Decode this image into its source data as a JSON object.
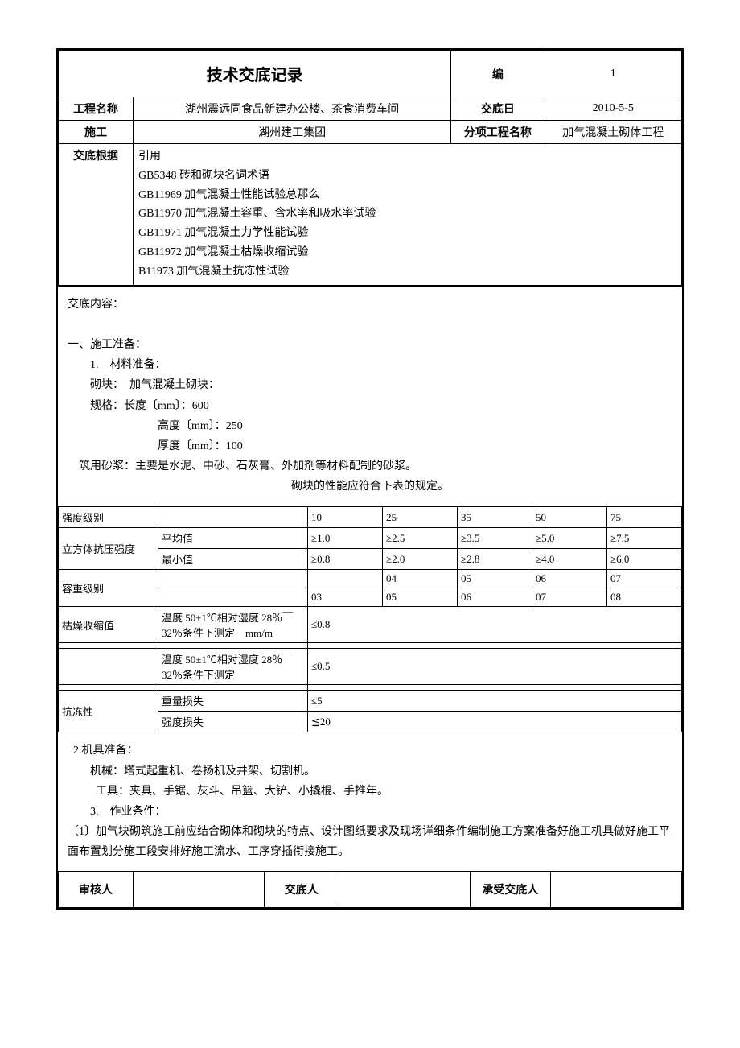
{
  "header": {
    "title": "技术交底记录",
    "num_label": "编",
    "num_value": "1",
    "project_label": "工程名称",
    "project_name": "湖州震远同食品新建办公楼、茶食消费车间",
    "date_label": "交底日",
    "date_value": "2010-5-5",
    "construct_label": "施工",
    "construct_value": "湖州建工集团",
    "subitem_label": "分项工程名称",
    "subitem_value": "加气混凝土砌体工程"
  },
  "basis": {
    "label": "交底根据",
    "lines": [
      "引用",
      "GB5348 砖和砌块名词术语",
      "GB11969 加气混凝土性能试验总那么",
      "GB11970 加气混凝土容重、含水率和吸水率试验",
      "GB11971 加气混凝土力学性能试验",
      "GB11972 加气混凝土枯燥收缩试验",
      "B11973 加气混凝土抗冻性试验"
    ]
  },
  "content": {
    "heading": "交底内容：",
    "sec1_title": "一、施工准备：",
    "sec1_1": "1.　材料准备：",
    "block_line": "砌块：　加气混凝土砌块：",
    "spec_line1": "规格：长度〔mm〕：600",
    "spec_line2": "高度〔mm〕：250",
    "spec_line3": "厚度〔mm〕：100",
    "mortar_line": "筑用砂浆：主要是水泥、中砂、石灰膏、外加剂等材料配制的砂浆。",
    "table_caption": "砌块的性能应符合下表的规定。"
  },
  "spec_table": {
    "rows": [
      {
        "c0": "强度级别",
        "c1": "",
        "c2": "10",
        "c3": "25",
        "c4": "35",
        "c5": "50",
        "c6": "75"
      },
      {
        "c0": "立方体抗压强度",
        "rowspan0": 2,
        "c1": "平均值",
        "c2": "≥1.0",
        "c3": "≥2.5",
        "c4": "≥3.5",
        "c5": "≥5.0",
        "c6": "≥7.5"
      },
      {
        "c1": "最小值",
        "c2": "≥0.8",
        "c3": "≥2.0",
        "c4": "≥2.8",
        "c5": "≥4.0",
        "c6": "≥6.0"
      },
      {
        "c0": "容重级别",
        "rowspan0": 2,
        "c1": "",
        "c2": "",
        "c3": "04",
        "c4": "05",
        "c5": "06",
        "c6": "07"
      },
      {
        "c1": "",
        "c2": "03",
        "c3": "05",
        "c4": "06",
        "c5": "07",
        "c6": "08"
      },
      {
        "c0": "枯燥收缩值",
        "c1": "温度 50±1℃相对湿度 28％￣32％条件下测定　mm/m",
        "c2": "≤0.8",
        "colspan2": 5
      },
      {
        "c0": "",
        "c1": "",
        "c2": "",
        "colspan2": 5
      },
      {
        "c0": "",
        "c1": "温度 50±1℃相对湿度 28％￣32％条件下测定",
        "c2": "≤0.5",
        "colspan2": 5
      },
      {
        "c0": "",
        "c1": "",
        "c2": "",
        "colspan2": 5
      },
      {
        "c0": "抗冻性",
        "rowspan0": 2,
        "c1": "重量损失",
        "c2": "≤5",
        "colspan2": 5
      },
      {
        "c1": "强度损失",
        "c2": "≦20",
        "colspan2": 5
      }
    ],
    "col_widths": [
      "16%",
      "24%",
      "12%",
      "12%",
      "12%",
      "12%",
      "12%"
    ]
  },
  "content2": {
    "sec2": "2.机具准备：",
    "mach_line": "机械：塔式起重机、卷扬机及井架、切割机。",
    "tool_line": "工具：夹具、手锯、灰斗、吊篮、大铲、小撬棍、手推年。",
    "sec3": "3.　作业条件：",
    "cond1": "〔1〕加气块砌筑施工前应结合砌体和砌块的特点、设计图纸要求及现场详细条件编制施工方案准备好施工机具做好施工平面布置划分施工段安排好施工流水、工序穿插衔接施工。"
  },
  "footer": {
    "reviewer": "审核人",
    "presenter": "交底人",
    "receiver": "承受交底人"
  }
}
